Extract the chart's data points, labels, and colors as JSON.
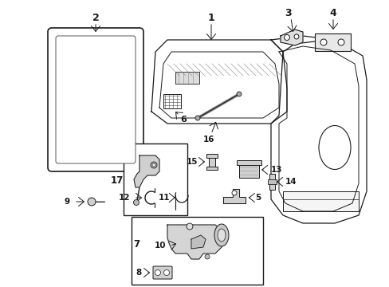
{
  "bg_color": "#ffffff",
  "lc": "#1a1a1a",
  "lw": 0.9,
  "fig_w": 4.89,
  "fig_h": 3.6,
  "dpi": 100
}
